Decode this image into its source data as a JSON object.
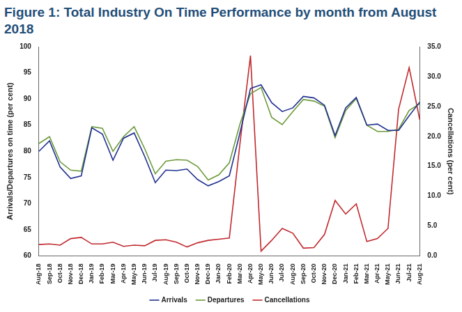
{
  "chart_data": {
    "type": "line",
    "title": "Figure 1: Total Industry On Time Performance by month from August 2018",
    "y_label": "Arrivals/Departures on time (per cent)",
    "y2_label": "Cancellations (per cent)",
    "categories": [
      "Aug-18",
      "Sep-18",
      "Oct-18",
      "Nov-18",
      "Dec-18",
      "Jan-19",
      "Feb-19",
      "Mar-19",
      "Apr-19",
      "May-19",
      "Jun-19",
      "Jul-19",
      "Aug-19",
      "Sep-19",
      "Oct-19",
      "Nov-19",
      "Dec-19",
      "Jan-20",
      "Feb-20",
      "Mar-20",
      "Apr-20",
      "May-20",
      "Jun-20",
      "Jul-20",
      "Aug-20",
      "Sep-20",
      "Oct-20",
      "Nov-20",
      "Dec-20",
      "Jan-21",
      "Feb-21",
      "Mar-21",
      "Apr-21",
      "May-21",
      "Jun-21",
      "Jul-21",
      "Aug-21"
    ],
    "series": [
      {
        "name": "Arrivals",
        "color": "#1f2f8f",
        "values": [
          80,
          82,
          77,
          74.8,
          75.3,
          84.5,
          83.3,
          78.3,
          82.5,
          83.5,
          79,
          74,
          76.4,
          76.3,
          76.6,
          74.6,
          73.4,
          74.2,
          75.3,
          83.5,
          92,
          92.7,
          89.3,
          87.6,
          88.3,
          90.5,
          90.2,
          88.8,
          83,
          88.3,
          90.3,
          85,
          85.2,
          84,
          84,
          86.8,
          89.4
        ]
      },
      {
        "name": "Departures",
        "color": "#6b9a3a",
        "values": [
          81.5,
          82.8,
          78,
          76.4,
          76.2,
          84.7,
          84.4,
          80,
          82.8,
          84.7,
          80.5,
          75.7,
          78.1,
          78.4,
          78.3,
          77.1,
          74.5,
          75.5,
          77.8,
          85.2,
          91,
          92.2,
          86.5,
          85.1,
          87.6,
          89.9,
          89.6,
          88.6,
          82.6,
          87.8,
          90.1,
          85,
          83.8,
          83.8,
          84.2,
          87.8,
          89.1
        ]
      },
      {
        "name": "Cancellations",
        "color": "#c0282d",
        "axis": "y2",
        "values": [
          1.9,
          2.0,
          1.8,
          2.9,
          3.1,
          2.0,
          2.0,
          2.3,
          1.6,
          1.8,
          1.7,
          2.6,
          2.7,
          2.3,
          1.5,
          2.2,
          2.6,
          2.8,
          3.0,
          18.7,
          33.5,
          0.8,
          2.6,
          4.6,
          3.8,
          1.3,
          1.4,
          3.6,
          9.3,
          7.0,
          8.7,
          2.4,
          2.9,
          4.6,
          24.5,
          31.5,
          22.8
        ]
      }
    ],
    "ylim": [
      60,
      100
    ],
    "yticks": [
      60,
      65,
      70,
      75,
      80,
      85,
      90,
      95,
      100
    ],
    "y2lim": [
      0,
      35
    ],
    "y2ticks": [
      {
        "value": 0,
        "label": "0.0"
      },
      {
        "value": 5,
        "label": "5.0"
      },
      {
        "value": 10,
        "label": "10.0"
      },
      {
        "value": 15,
        "label": "15.0"
      },
      {
        "value": 20,
        "label": "20.0"
      },
      {
        "value": 25,
        "label": "25.0"
      },
      {
        "value": 30,
        "label": "30.0"
      },
      {
        "value": 35,
        "label": "35.0"
      }
    ],
    "grid": false,
    "legend": "bottom"
  }
}
